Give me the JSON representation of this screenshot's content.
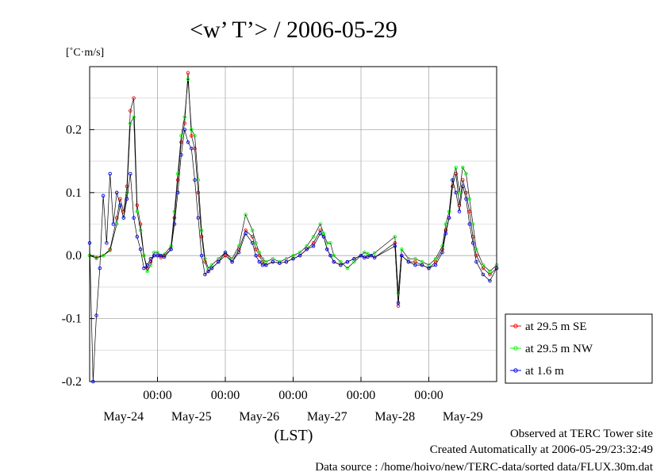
{
  "chart_data": {
    "type": "line",
    "title": "<w’ T’> / 2006-05-29",
    "ylabel": "[˚C·m/s]",
    "xlabel": "(LST)",
    "ylim": [
      -0.2,
      0.3
    ],
    "yticks": [
      -0.2,
      -0.1,
      0.0,
      0.1,
      0.2
    ],
    "ytick_labels": [
      "-0.2",
      "-0.1",
      "0.0",
      "0.1",
      "0.2"
    ],
    "xlim": [
      0,
      6
    ],
    "time_ticks": [
      1,
      2,
      3,
      4,
      5
    ],
    "time_tick_labels": [
      "00:00",
      "00:00",
      "00:00",
      "00:00",
      "00:00"
    ],
    "day_labels": [
      {
        "x": 0.5,
        "label": "May-24"
      },
      {
        "x": 1.5,
        "label": "May-25"
      },
      {
        "x": 2.5,
        "label": "May-26"
      },
      {
        "x": 3.5,
        "label": "May-27"
      },
      {
        "x": 4.5,
        "label": "May-28"
      },
      {
        "x": 5.5,
        "label": "May-29"
      }
    ],
    "grid": true,
    "legend": "right-bottom",
    "series": [
      {
        "name": "at 29.5 m SE",
        "color": "#ff0000",
        "x": [
          0.0,
          0.1,
          0.2,
          0.3,
          0.4,
          0.45,
          0.5,
          0.55,
          0.6,
          0.65,
          0.7,
          0.75,
          0.8,
          0.85,
          0.9,
          0.95,
          1.0,
          1.05,
          1.1,
          1.2,
          1.25,
          1.3,
          1.35,
          1.4,
          1.45,
          1.5,
          1.55,
          1.6,
          1.65,
          1.7,
          1.75,
          1.8,
          1.9,
          2.0,
          2.1,
          2.2,
          2.3,
          2.4,
          2.45,
          2.5,
          2.55,
          2.6,
          2.7,
          2.8,
          2.9,
          3.0,
          3.1,
          3.2,
          3.3,
          3.4,
          3.45,
          3.5,
          3.55,
          3.6,
          3.7,
          3.8,
          3.9,
          4.0,
          4.05,
          4.1,
          4.15,
          4.2,
          4.5,
          4.55,
          4.6,
          4.7,
          4.8,
          4.9,
          5.0,
          5.1,
          5.2,
          5.25,
          5.3,
          5.35,
          5.4,
          5.45,
          5.5,
          5.55,
          5.6,
          5.65,
          5.7,
          5.8,
          5.9,
          6.0
        ],
        "y": [
          0.0,
          -0.004,
          0.0,
          0.01,
          0.06,
          0.09,
          0.07,
          0.11,
          0.23,
          0.25,
          0.08,
          0.05,
          0.0,
          -0.02,
          -0.01,
          0.0,
          0.0,
          -0.003,
          0.0,
          0.01,
          0.06,
          0.12,
          0.18,
          0.21,
          0.29,
          0.19,
          0.17,
          0.1,
          0.03,
          -0.01,
          -0.025,
          -0.02,
          -0.01,
          0.0,
          -0.01,
          0.01,
          0.04,
          0.03,
          0.01,
          0.0,
          -0.01,
          -0.015,
          -0.01,
          -0.012,
          -0.01,
          -0.005,
          0.0,
          0.01,
          0.02,
          0.04,
          0.03,
          0.01,
          0.0,
          -0.01,
          -0.015,
          -0.01,
          -0.005,
          0.0,
          -0.003,
          -0.002,
          0.0,
          -0.003,
          0.02,
          -0.08,
          0.0,
          -0.01,
          -0.01,
          -0.015,
          -0.02,
          -0.01,
          0.01,
          0.04,
          0.06,
          0.11,
          0.13,
          0.08,
          0.12,
          0.1,
          0.07,
          0.03,
          0.0,
          -0.02,
          -0.03,
          -0.02
        ]
      },
      {
        "name": "at 29.5 m NW",
        "color": "#00ff00",
        "x": [
          0.0,
          0.1,
          0.2,
          0.3,
          0.4,
          0.45,
          0.5,
          0.55,
          0.6,
          0.65,
          0.7,
          0.75,
          0.8,
          0.85,
          0.9,
          0.95,
          1.0,
          1.05,
          1.1,
          1.2,
          1.25,
          1.3,
          1.35,
          1.4,
          1.45,
          1.5,
          1.55,
          1.6,
          1.65,
          1.7,
          1.75,
          1.8,
          1.9,
          2.0,
          2.1,
          2.2,
          2.3,
          2.4,
          2.45,
          2.5,
          2.55,
          2.6,
          2.7,
          2.8,
          2.9,
          3.0,
          3.1,
          3.2,
          3.3,
          3.4,
          3.45,
          3.5,
          3.55,
          3.6,
          3.7,
          3.8,
          3.9,
          4.0,
          4.05,
          4.1,
          4.15,
          4.2,
          4.5,
          4.55,
          4.6,
          4.7,
          4.8,
          4.9,
          5.0,
          5.1,
          5.2,
          5.25,
          5.3,
          5.35,
          5.4,
          5.45,
          5.5,
          5.55,
          5.6,
          5.65,
          5.7,
          5.8,
          5.9,
          6.0
        ],
        "y": [
          0.0,
          -0.003,
          0.0,
          0.008,
          0.05,
          0.08,
          0.06,
          0.1,
          0.21,
          0.22,
          0.07,
          0.04,
          0.0,
          -0.025,
          -0.015,
          0.005,
          0.005,
          0.0,
          0.002,
          0.015,
          0.07,
          0.13,
          0.19,
          0.22,
          0.28,
          0.2,
          0.19,
          0.12,
          0.04,
          -0.005,
          -0.02,
          -0.015,
          -0.005,
          0.005,
          -0.005,
          0.015,
          0.065,
          0.04,
          0.02,
          0.005,
          -0.005,
          -0.01,
          -0.005,
          -0.01,
          -0.005,
          0.0,
          0.005,
          0.015,
          0.03,
          0.05,
          0.035,
          0.02,
          0.02,
          0.0,
          -0.01,
          -0.02,
          -0.01,
          0.0,
          0.005,
          0.003,
          0.0,
          0.004,
          0.03,
          -0.06,
          0.01,
          -0.005,
          -0.005,
          -0.01,
          -0.015,
          -0.005,
          0.015,
          0.05,
          0.07,
          0.12,
          0.14,
          0.1,
          0.14,
          0.13,
          0.09,
          0.05,
          0.01,
          -0.015,
          -0.025,
          -0.015
        ]
      },
      {
        "name": "at 1.6 m",
        "color": "#0000ff",
        "x": [
          0.0,
          0.05,
          0.1,
          0.15,
          0.2,
          0.25,
          0.3,
          0.35,
          0.4,
          0.45,
          0.5,
          0.55,
          0.6,
          0.65,
          0.7,
          0.75,
          0.8,
          0.85,
          0.9,
          0.95,
          1.0,
          1.05,
          1.1,
          1.2,
          1.25,
          1.3,
          1.35,
          1.4,
          1.45,
          1.5,
          1.55,
          1.6,
          1.65,
          1.7,
          1.75,
          1.8,
          1.9,
          2.0,
          2.1,
          2.2,
          2.3,
          2.4,
          2.45,
          2.5,
          2.55,
          2.6,
          2.7,
          2.8,
          2.9,
          3.0,
          3.1,
          3.2,
          3.3,
          3.4,
          3.45,
          3.5,
          3.55,
          3.6,
          3.7,
          3.8,
          3.9,
          4.0,
          4.05,
          4.1,
          4.15,
          4.2,
          4.5,
          4.55,
          4.6,
          4.7,
          4.8,
          4.9,
          5.0,
          5.1,
          5.2,
          5.25,
          5.3,
          5.35,
          5.4,
          5.45,
          5.5,
          5.55,
          5.6,
          5.65,
          5.7,
          5.8,
          5.9,
          6.0
        ],
        "y": [
          0.02,
          -0.2,
          -0.095,
          -0.02,
          0.095,
          0.02,
          0.13,
          0.05,
          0.1,
          0.08,
          0.06,
          0.09,
          0.13,
          0.06,
          0.03,
          0.01,
          -0.02,
          -0.015,
          -0.005,
          0.0,
          0.0,
          0.0,
          -0.002,
          0.01,
          0.05,
          0.1,
          0.16,
          0.2,
          0.18,
          0.17,
          0.12,
          0.06,
          0.0,
          -0.03,
          -0.025,
          -0.02,
          -0.01,
          0.005,
          -0.01,
          0.005,
          0.035,
          0.02,
          0.0,
          -0.01,
          -0.015,
          -0.015,
          -0.01,
          -0.012,
          -0.01,
          -0.005,
          0.0,
          0.01,
          0.015,
          0.035,
          0.03,
          0.01,
          0.0,
          -0.01,
          -0.015,
          -0.01,
          -0.005,
          0.0,
          -0.003,
          -0.002,
          0.0,
          -0.003,
          0.015,
          -0.075,
          0.0,
          -0.01,
          -0.015,
          -0.015,
          -0.02,
          -0.015,
          0.005,
          0.035,
          0.06,
          0.12,
          0.1,
          0.07,
          0.11,
          0.09,
          0.05,
          0.02,
          -0.01,
          -0.03,
          -0.04,
          -0.02
        ]
      }
    ]
  },
  "footer": {
    "line1": "Observed at TERC Tower site",
    "line2": "Created Automatically at 2006-05-29/23:32:49",
    "line3": "Data source : /home/hoivo/new/TERC-data/sorted  data/FLUX.30m.dat"
  }
}
